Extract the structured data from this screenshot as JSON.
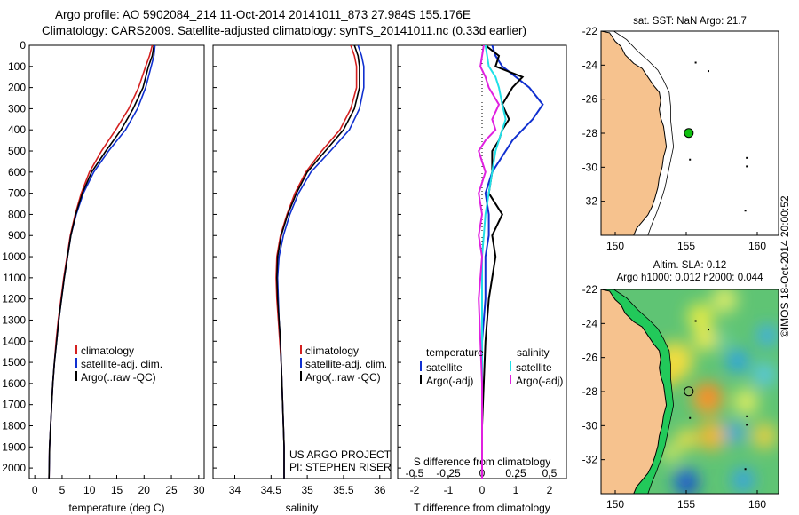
{
  "header": {
    "line1": "Argo profile: AO 5902084_214 11-Oct-2014 20141011_873 27.984S 155.176E",
    "line2": "Climatology: CARS2009. Satellite-adjusted climatology: synTS_20141011.nc (0.33d earlier)"
  },
  "side_label": "©IMOS 18-Oct-2014 20:00:52",
  "colors": {
    "climatology": "#d42020",
    "satellite": "#1030d0",
    "argo": "#000000",
    "sal_satellite": "#20e0e8",
    "sal_argo": "#e020e0",
    "land": "#f6c28e",
    "float": "#10c010"
  },
  "chart_data": [
    {
      "type": "line",
      "xlabel": "temperature (deg C)",
      "xlim": [
        -1,
        31
      ],
      "ylim": [
        2050,
        0
      ],
      "xticks": [
        "0",
        "5",
        "10",
        "15",
        "20",
        "25",
        "30"
      ],
      "yticks": [
        "0",
        "100",
        "200",
        "300",
        "400",
        "500",
        "600",
        "700",
        "800",
        "900",
        "1000",
        "1100",
        "1200",
        "1300",
        "1400",
        "1500",
        "1600",
        "1700",
        "1800",
        "1900",
        "2000"
      ],
      "legend": [
        "climatology",
        "satellite-adj. clim.",
        "Argo(..raw -QC)"
      ],
      "series": [
        {
          "name": "climatology",
          "x": [
            21.5,
            21.0,
            20.3,
            19.0,
            17.2,
            14.8,
            12.2,
            10.0,
            8.5,
            7.4,
            6.5,
            5.9,
            5.3,
            4.8,
            4.3,
            3.9,
            3.6,
            3.3,
            3.1,
            2.9,
            2.7,
            2.6
          ],
          "y": [
            0,
            50,
            100,
            200,
            300,
            400,
            500,
            600,
            700,
            800,
            900,
            1000,
            1100,
            1200,
            1300,
            1400,
            1500,
            1600,
            1700,
            1800,
            1900,
            2050
          ]
        },
        {
          "name": "satellite-adj. clim.",
          "x": [
            22.0,
            21.8,
            21.3,
            20.3,
            18.8,
            16.6,
            13.5,
            10.8,
            8.9,
            7.6,
            6.6,
            6.0,
            5.4,
            4.9,
            4.4,
            4.0,
            3.6,
            3.3,
            3.1,
            2.9,
            2.7,
            2.6
          ],
          "y": [
            0,
            50,
            100,
            200,
            300,
            400,
            500,
            600,
            700,
            800,
            900,
            1000,
            1100,
            1200,
            1300,
            1400,
            1500,
            1600,
            1700,
            1800,
            1900,
            2050
          ]
        },
        {
          "name": "Argo(..raw -QC)",
          "x": [
            21.8,
            21.5,
            20.8,
            19.8,
            18.0,
            15.8,
            13.0,
            10.4,
            8.7,
            7.5,
            6.6,
            6.0,
            5.4,
            4.9,
            4.4,
            4.0,
            3.6,
            3.3,
            3.1,
            2.9,
            2.7,
            2.6
          ],
          "y": [
            0,
            50,
            100,
            200,
            300,
            400,
            500,
            600,
            700,
            800,
            900,
            1000,
            1100,
            1200,
            1300,
            1400,
            1500,
            1600,
            1700,
            1800,
            1900,
            2050
          ]
        }
      ]
    },
    {
      "type": "line",
      "xlabel": "salinity",
      "xlim": [
        33.7,
        36.15
      ],
      "ylim": [
        2050,
        0
      ],
      "xticks": [
        "34",
        "34.5",
        "35",
        "35.5",
        "36"
      ],
      "legend": [
        "climatology",
        "satellite-adj. clim.",
        "Argo(..raw -QC)"
      ],
      "annotations": [
        "US ARGO PROJECT",
        "PI: STEPHEN RISER"
      ],
      "series": [
        {
          "name": "climatology",
          "x": [
            35.6,
            35.65,
            35.68,
            35.68,
            35.6,
            35.45,
            35.2,
            34.98,
            34.83,
            34.72,
            34.63,
            34.58,
            34.57,
            34.58,
            34.6,
            34.62,
            34.64,
            34.65,
            34.66,
            34.67,
            34.68,
            34.68
          ],
          "y": [
            0,
            50,
            100,
            200,
            300,
            400,
            500,
            600,
            700,
            800,
            900,
            1000,
            1100,
            1200,
            1300,
            1400,
            1500,
            1600,
            1700,
            1800,
            1900,
            2050
          ]
        },
        {
          "name": "satellite-adj. clim.",
          "x": [
            35.7,
            35.75,
            35.78,
            35.78,
            35.72,
            35.58,
            35.32,
            35.05,
            34.88,
            34.76,
            34.67,
            34.61,
            34.59,
            34.6,
            34.61,
            34.63,
            34.64,
            34.65,
            34.66,
            34.67,
            34.68,
            34.68
          ],
          "y": [
            0,
            50,
            100,
            200,
            300,
            400,
            500,
            600,
            700,
            800,
            900,
            1000,
            1100,
            1200,
            1300,
            1400,
            1500,
            1600,
            1700,
            1800,
            1900,
            2050
          ]
        },
        {
          "name": "Argo(..raw -QC)",
          "x": [
            35.65,
            35.7,
            35.72,
            35.72,
            35.65,
            35.5,
            35.25,
            35.0,
            34.85,
            34.73,
            34.64,
            34.59,
            34.58,
            34.59,
            34.61,
            34.63,
            34.64,
            34.65,
            34.66,
            34.67,
            34.68,
            34.68
          ],
          "y": [
            0,
            50,
            100,
            200,
            300,
            400,
            500,
            600,
            700,
            800,
            900,
            1000,
            1100,
            1200,
            1300,
            1400,
            1500,
            1600,
            1700,
            1800,
            1900,
            2050
          ]
        }
      ]
    },
    {
      "type": "line",
      "xlabel": "T difference from climatology",
      "xlabel_top": "S difference from climatology",
      "xlim": [
        -2.5,
        2.5
      ],
      "ylim": [
        2050,
        0
      ],
      "xticks": [
        "-2",
        "-1",
        "0",
        "1",
        "2"
      ],
      "xticks_s": [
        "-0.5",
        "-0.25",
        "0",
        "0.25",
        "0.5"
      ],
      "legend_t": [
        "temperature",
        "satellite",
        "Argo(-adj)"
      ],
      "legend_s": [
        "salinity",
        "satellite",
        "Argo(-adj)"
      ],
      "series": [
        {
          "name": "satellite",
          "x": [
            0.3,
            0.4,
            0.6,
            1.0,
            1.4,
            1.8,
            1.5,
            1.2,
            0.9,
            0.7,
            0.3,
            0.1,
            0.2,
            0.2,
            0.1,
            0.1,
            0.0,
            0.0,
            0.0,
            0.0,
            0.0
          ],
          "y": [
            0,
            50,
            100,
            150,
            200,
            280,
            350,
            400,
            450,
            500,
            600,
            700,
            800,
            900,
            1000,
            1200,
            1400,
            1600,
            1800,
            1900,
            2050
          ]
        },
        {
          "name": "Argo(-adj)",
          "x": [
            0.1,
            0.5,
            0.4,
            1.2,
            0.9,
            0.6,
            0.8,
            0.6,
            0.5,
            0.3,
            0.3,
            0.2,
            0.6,
            0.3,
            0.4,
            0.2,
            0.1,
            0.05,
            0.0,
            0.0,
            0.0
          ],
          "y": [
            0,
            50,
            100,
            150,
            200,
            280,
            350,
            400,
            450,
            500,
            600,
            700,
            800,
            900,
            1000,
            1200,
            1400,
            1600,
            1800,
            1900,
            2050
          ]
        },
        {
          "name": "salinity satellite",
          "x": [
            0.1,
            0.15,
            0.2,
            0.4,
            0.5,
            0.6,
            0.7,
            0.6,
            0.5,
            0.4,
            0.3,
            0.2,
            0.1,
            0.05,
            0.0,
            0.0,
            0.0,
            0.0,
            0.0,
            0.0,
            0.0
          ],
          "y": [
            0,
            50,
            100,
            150,
            200,
            280,
            350,
            400,
            450,
            500,
            600,
            700,
            800,
            900,
            1000,
            1200,
            1400,
            1600,
            1800,
            1900,
            2050
          ]
        },
        {
          "name": "salinity Argo(-adj)",
          "x": [
            0.05,
            0.0,
            -0.05,
            0.1,
            0.2,
            0.5,
            0.3,
            0.4,
            0.1,
            -0.1,
            0.1,
            -0.1,
            0.0,
            -0.1,
            0.0,
            -0.1,
            -0.05,
            0.0,
            0.0,
            0.0,
            0.0
          ],
          "y": [
            0,
            50,
            100,
            150,
            200,
            280,
            350,
            400,
            450,
            500,
            600,
            700,
            800,
            900,
            1000,
            1200,
            1400,
            1600,
            1800,
            1900,
            2050
          ]
        }
      ]
    },
    {
      "type": "map",
      "title": "sat. SST: NaN Argo: 21.7",
      "xlim": [
        149,
        161.5
      ],
      "ylim": [
        -34,
        -22
      ],
      "xticks": [
        "150",
        "155",
        "160"
      ],
      "yticks": [
        "-22",
        "-24",
        "-26",
        "-28",
        "-30",
        "-32"
      ],
      "float_position": {
        "lon": 155.176,
        "lat": -27.984
      }
    },
    {
      "type": "heatmap",
      "title": "Altim. SLA: 0.12",
      "subtitle": "Argo h1000: 0.012 h2000: 0.044",
      "xlim": [
        149,
        161.5
      ],
      "ylim": [
        -34,
        -22
      ],
      "xticks": [
        "150",
        "155",
        "160"
      ],
      "yticks": [
        "-22",
        "-24",
        "-26",
        "-28",
        "-30",
        "-32"
      ],
      "float_position": {
        "lon": 155.176,
        "lat": -27.984
      }
    }
  ]
}
